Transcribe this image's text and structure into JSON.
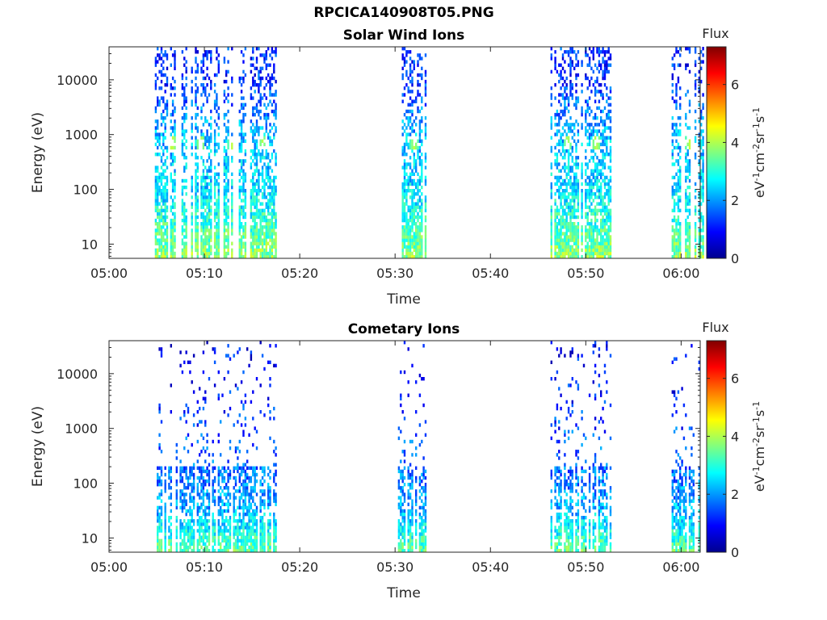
{
  "figure_title": "RPCICA140908T05.PNG",
  "chart_data": [
    {
      "type": "heatmap",
      "title": "Solar Wind Ions",
      "xlabel": "Time",
      "ylabel": "Energy (eV)",
      "x_ticks": [
        "05:00",
        "05:10",
        "05:20",
        "05:30",
        "05:40",
        "05:50",
        "06:00"
      ],
      "x_range": [
        "05:00",
        "06:02"
      ],
      "y_ticks": [
        "10",
        "100",
        "1000",
        "10000"
      ],
      "y_scale": "log",
      "y_range": [
        5.5,
        40000
      ],
      "colorbar": {
        "title": "Flux",
        "label": "eV-1cm-2sr-1s-1",
        "ticks": [
          "0",
          "2",
          "4",
          "6"
        ],
        "range": [
          0,
          7.3
        ],
        "colormap": "jet"
      },
      "activity_intervals": [
        [
          "05:04.8",
          "05:17.5"
        ],
        [
          "05:30.3",
          "05:33.2"
        ],
        [
          "05:46.3",
          "05:52.5"
        ],
        [
          "05:59.0",
          "06:02.2"
        ]
      ],
      "bright_spots": [
        {
          "time": "05:06.5",
          "energy": 700,
          "flux": 4.3
        },
        {
          "time": "05:09.5",
          "energy": 700,
          "flux": 4.2
        },
        {
          "time": "05:12.8",
          "energy": 700,
          "flux": 4.1
        },
        {
          "time": "05:16.0",
          "energy": 700,
          "flux": 4.0
        },
        {
          "time": "05:31.9",
          "energy": 700,
          "flux": 4.1
        },
        {
          "time": "05:48.0",
          "energy": 700,
          "flux": 4.1
        },
        {
          "time": "05:51.0",
          "energy": 700,
          "flux": 4.2
        },
        {
          "time": "06:00.8",
          "energy": 700,
          "flux": 4.1
        }
      ],
      "energy_band_flux": [
        {
          "energy": 10,
          "flux": 3.5
        },
        {
          "energy": 30,
          "flux": 3.0
        },
        {
          "energy": 100,
          "flux": 2.5
        },
        {
          "energy": 1000,
          "flux": 2.2
        },
        {
          "energy": 10000,
          "flux": 1.2
        }
      ],
      "grid": false
    },
    {
      "type": "heatmap",
      "title": "Cometary Ions",
      "xlabel": "Time",
      "ylabel": "Energy (eV)",
      "x_ticks": [
        "05:00",
        "05:10",
        "05:20",
        "05:30",
        "05:40",
        "05:50",
        "06:00"
      ],
      "x_range": [
        "05:00",
        "06:02"
      ],
      "y_ticks": [
        "10",
        "100",
        "1000",
        "10000"
      ],
      "y_scale": "log",
      "y_range": [
        5.5,
        40000
      ],
      "colorbar": {
        "title": "Flux",
        "label": "eV-1cm-2sr-1s-1",
        "ticks": [
          "0",
          "2",
          "4",
          "6"
        ],
        "range": [
          0,
          7.3
        ],
        "colormap": "jet"
      },
      "activity_intervals": [
        [
          "05:04.8",
          "05:17.5"
        ],
        [
          "05:30.3",
          "05:33.2"
        ],
        [
          "05:46.3",
          "05:52.5"
        ],
        [
          "05:59.0",
          "06:02.2"
        ]
      ],
      "energy_band_flux": [
        {
          "energy": 10,
          "flux": 3.0
        },
        {
          "energy": 30,
          "flux": 2.2
        },
        {
          "energy": 100,
          "flux": 1.8
        },
        {
          "energy": 1000,
          "flux": 1.4
        },
        {
          "energy": 10000,
          "flux": 1.0
        }
      ],
      "grid": false
    }
  ]
}
